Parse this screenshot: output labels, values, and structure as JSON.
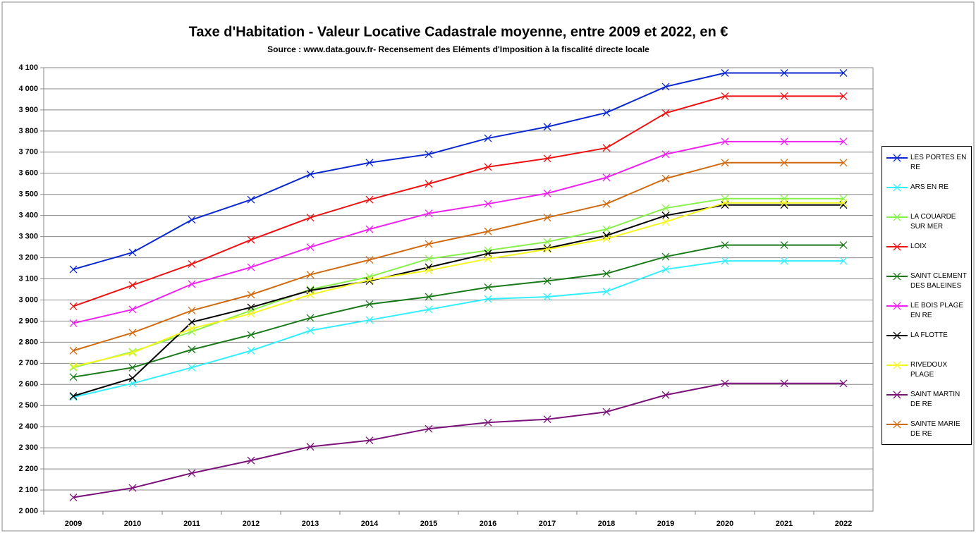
{
  "chart_data": {
    "type": "line",
    "title": "Taxe d'Habitation - Valeur Locative Cadastrale moyenne, entre 2009 et 2022, en €",
    "subtitle": "Source : www.data.gouv.fr- Recensement des Eléments d'Imposition à la fiscalité directe locale",
    "categories": [
      "2009",
      "2010",
      "2011",
      "2012",
      "2013",
      "2014",
      "2015",
      "2016",
      "2017",
      "2018",
      "2019",
      "2020",
      "2021",
      "2022"
    ],
    "ylim": [
      2000,
      4100
    ],
    "yticks": [
      {
        "value": 2000,
        "label": "2 000"
      },
      {
        "value": 2100,
        "label": "2 100"
      },
      {
        "value": 2200,
        "label": "2 200"
      },
      {
        "value": 2300,
        "label": "2 300"
      },
      {
        "value": 2400,
        "label": "2 400"
      },
      {
        "value": 2500,
        "label": "2 500"
      },
      {
        "value": 2600,
        "label": "2 600"
      },
      {
        "value": 2700,
        "label": "2 700"
      },
      {
        "value": 2800,
        "label": "2 800"
      },
      {
        "value": 2900,
        "label": "2 900"
      },
      {
        "value": 3000,
        "label": "3 000"
      },
      {
        "value": 3100,
        "label": "3 100"
      },
      {
        "value": 3200,
        "label": "3 200"
      },
      {
        "value": 3300,
        "label": "3 300"
      },
      {
        "value": 3400,
        "label": "3 400"
      },
      {
        "value": 3500,
        "label": "3 500"
      },
      {
        "value": 3600,
        "label": "3 600"
      },
      {
        "value": 3700,
        "label": "3 700"
      },
      {
        "value": 3800,
        "label": "3 800"
      },
      {
        "value": 3900,
        "label": "3 900"
      },
      {
        "value": 4000,
        "label": "4 000"
      },
      {
        "value": 4100,
        "label": "4 100"
      }
    ],
    "grid": true,
    "legend": "right",
    "series": [
      {
        "name": "LES PORTES EN RE",
        "color": "#0a28d0",
        "values": [
          3145,
          3225,
          3380,
          3475,
          3595,
          3650,
          3690,
          3766,
          3820,
          3887,
          4010,
          4075,
          4075,
          4075
        ]
      },
      {
        "name": "ARS EN RE",
        "color": "#33eeff",
        "values": [
          2540,
          2605,
          2680,
          2760,
          2855,
          2905,
          2955,
          3005,
          3015,
          3040,
          3145,
          3185,
          3185,
          3185
        ]
      },
      {
        "name": "LA COUARDE SUR MER",
        "color": "#88f04a",
        "values": [
          2680,
          2755,
          2850,
          2950,
          3050,
          3110,
          3195,
          3235,
          3275,
          3335,
          3435,
          3480,
          3480,
          3480
        ]
      },
      {
        "name": "LOIX",
        "color": "#ee1111",
        "values": [
          2970,
          3070,
          3170,
          3285,
          3390,
          3475,
          3550,
          3630,
          3670,
          3720,
          3885,
          3965,
          3965,
          3965
        ]
      },
      {
        "name": "SAINT CLEMENT DES BALEINES",
        "color": "#1a7a1a",
        "values": [
          2635,
          2680,
          2765,
          2835,
          2915,
          2980,
          3015,
          3060,
          3090,
          3125,
          3205,
          3260,
          3260,
          3260
        ]
      },
      {
        "name": "LE BOIS PLAGE EN RE",
        "color": "#ee22ee",
        "values": [
          2890,
          2955,
          3075,
          3155,
          3250,
          3335,
          3410,
          3455,
          3505,
          3580,
          3690,
          3750,
          3750,
          3750
        ]
      },
      {
        "name": "LA FLOTTE",
        "color": "#000000",
        "values": [
          2545,
          2630,
          2895,
          2965,
          3045,
          3090,
          3155,
          3220,
          3245,
          3305,
          3400,
          3450,
          3450,
          3450
        ]
      },
      {
        "name": "RIVEDOUX PLAGE",
        "color": "#f5f522",
        "values": [
          2685,
          2750,
          2865,
          2935,
          3025,
          3095,
          3140,
          3195,
          3240,
          3290,
          3370,
          3460,
          3460,
          3460
        ]
      },
      {
        "name": "SAINT MARTIN DE RE",
        "color": "#7a127a",
        "values": [
          2065,
          2110,
          2180,
          2240,
          2305,
          2335,
          2390,
          2420,
          2435,
          2470,
          2550,
          2605,
          2605,
          2605
        ]
      },
      {
        "name": "SAINTE MARIE DE RE",
        "color": "#d06a10",
        "values": [
          2760,
          2845,
          2950,
          3025,
          3120,
          3190,
          3265,
          3325,
          3390,
          3455,
          3575,
          3650,
          3650,
          3650
        ]
      }
    ]
  }
}
